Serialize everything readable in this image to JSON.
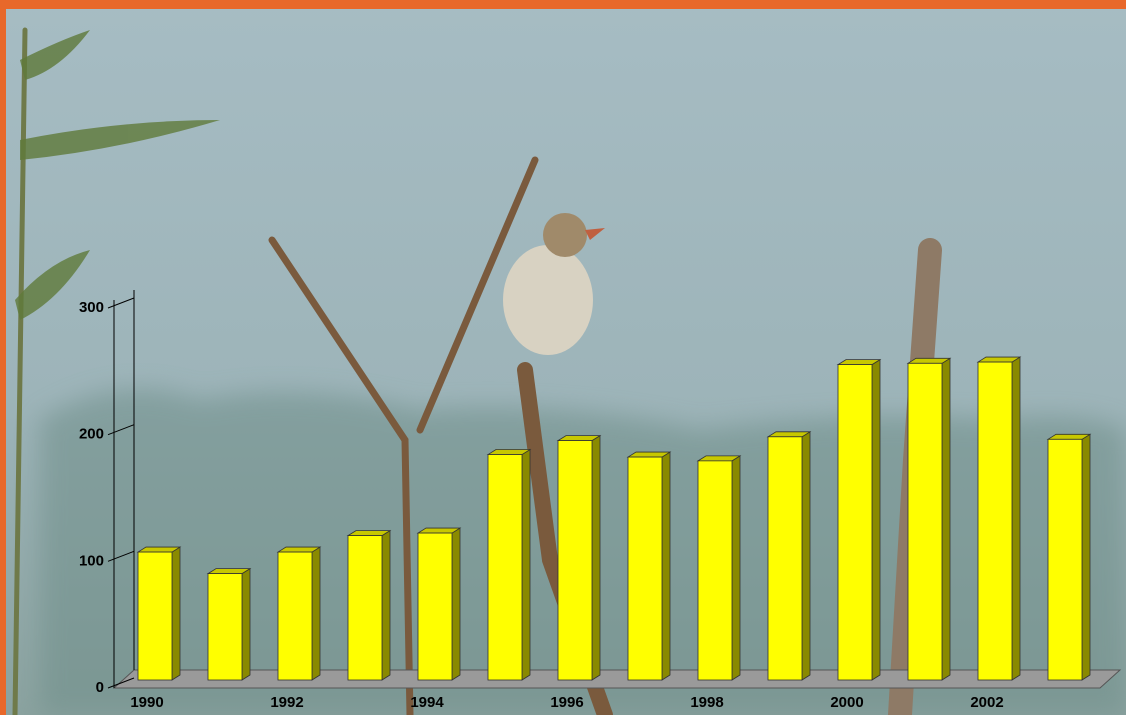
{
  "chart_data": {
    "type": "bar",
    "categories": [
      "1990",
      null,
      "1992",
      null,
      "1994",
      null,
      "1996",
      null,
      "1998",
      null,
      "2000",
      null,
      "2002",
      null
    ],
    "values": [
      101,
      84,
      101,
      114,
      116,
      178,
      189,
      176,
      173,
      192,
      249,
      250,
      251,
      190
    ],
    "color": "#ffff00",
    "ylim": [
      0,
      300
    ],
    "yticks": [
      0,
      100,
      200,
      300
    ],
    "grid": false
  }
}
